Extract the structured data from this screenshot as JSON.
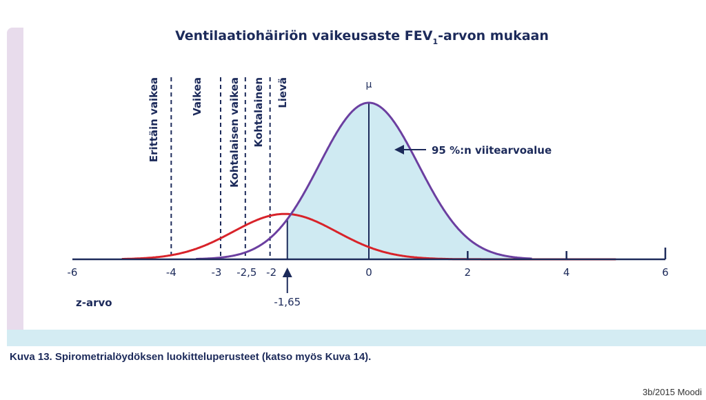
{
  "chart_data": {
    "type": "line",
    "title_main": "Ventilaatiohäiriön vaikeusaste FEV",
    "title_sub": "1",
    "title_end": "-arvon mukaan",
    "x_label": "z-arvo",
    "xlim": [
      -6,
      6
    ],
    "x_ticks": [
      "-6",
      "-4",
      "-3",
      "-2,5",
      "-2",
      "0",
      "2",
      "4",
      "6"
    ],
    "x_tick_values": [
      -6,
      -4,
      -3,
      -2.5,
      -2,
      0,
      2,
      4,
      6
    ],
    "series": [
      {
        "name": "",
        "color": "#6b3fa0",
        "distribution": "normal",
        "mean": 0,
        "sd": 1,
        "x_range": [
          -3.5,
          3.3
        ],
        "peak_y": 1.0
      },
      {
        "name": "",
        "color": "#d8232a",
        "distribution": "normal",
        "mean": -1.7,
        "sd": 1.05,
        "x_range": [
          -5,
          5
        ],
        "peak_y": 0.29
      }
    ],
    "shaded_region": {
      "from": -1.65,
      "to": 3.3,
      "color": "#cfeaf2"
    },
    "mean_marker": {
      "x": 0,
      "label": "μ"
    },
    "cutoffs": [
      {
        "x": -4,
        "label": "Erittäin vaikea"
      },
      {
        "x": -3,
        "label": "Vaikea"
      },
      {
        "x": -2.5,
        "label": "Kohtalaisen vaikea"
      },
      {
        "x": -2,
        "label": "Kohtalainen"
      },
      {
        "x": -1.65,
        "label": "Lievä"
      }
    ],
    "annotations": [
      {
        "text": "95 %:n viitearvoalue",
        "points_to": "shaded_region"
      },
      {
        "text": "-1,65",
        "x": -1.65
      }
    ]
  },
  "caption": "Kuva 13. Spirometrialöydöksen luokitteluperusteet (katso myös Kuva 14).",
  "credit": "3b/2015 Moodi"
}
